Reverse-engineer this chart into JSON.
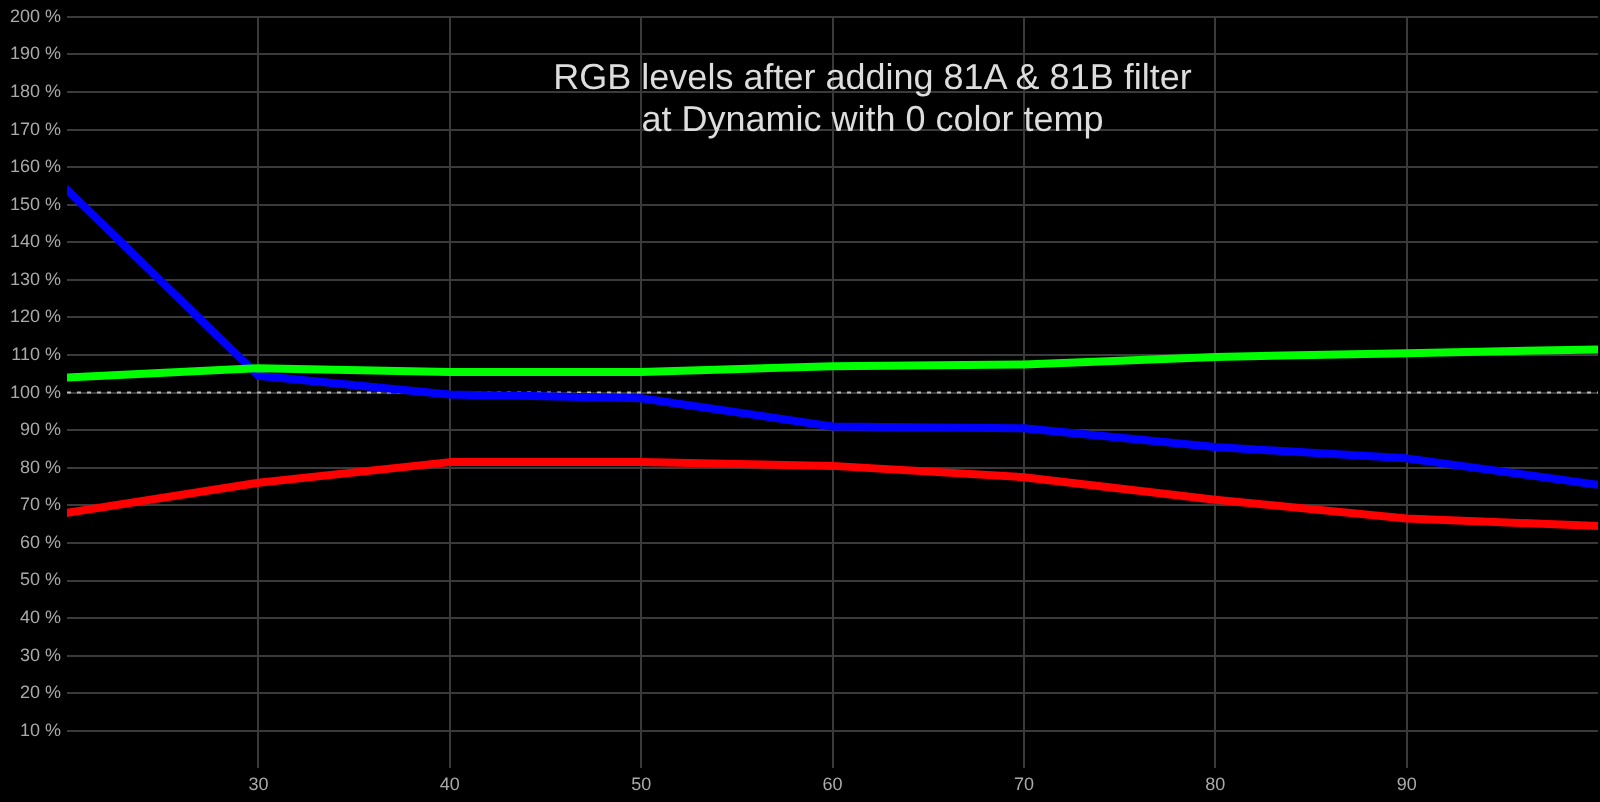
{
  "chart_data": {
    "type": "line",
    "title": "RGB levels after adding 81A & 81B filter",
    "subtitle": "at Dynamic with 0 color temp",
    "x": [
      20,
      30,
      40,
      50,
      60,
      70,
      80,
      90,
      100
    ],
    "series": [
      {
        "color": "#00ff00",
        "values": [
          104,
          106.5,
          105.5,
          105.5,
          107,
          107.5,
          109.5,
          110.5,
          111.5
        ]
      },
      {
        "color": "#0000ff",
        "values": [
          154,
          104.5,
          99.5,
          98.5,
          91,
          90.5,
          85.5,
          82.5,
          75.5
        ]
      },
      {
        "color": "#ff0000",
        "values": [
          68,
          76,
          81.5,
          81.5,
          80.5,
          77.5,
          71.5,
          66.5,
          64.5
        ]
      }
    ],
    "xlim": [
      20,
      100
    ],
    "xticks": [
      30,
      40,
      50,
      60,
      70,
      80,
      90
    ],
    "ylim": [
      0,
      200
    ],
    "yticks": [
      {
        "value": 10,
        "label": "10 %"
      },
      {
        "value": 20,
        "label": "20 %"
      },
      {
        "value": 30,
        "label": "30 %"
      },
      {
        "value": 40,
        "label": "40 %"
      },
      {
        "value": 50,
        "label": "50 %"
      },
      {
        "value": 60,
        "label": "60 %"
      },
      {
        "value": 70,
        "label": "70 %"
      },
      {
        "value": 80,
        "label": "80 %"
      },
      {
        "value": 90,
        "label": "90 %"
      },
      {
        "value": 100,
        "label": "100 %"
      },
      {
        "value": 110,
        "label": "110 %"
      },
      {
        "value": 120,
        "label": "120 %"
      },
      {
        "value": 130,
        "label": "130 %"
      },
      {
        "value": 140,
        "label": "140 %"
      },
      {
        "value": 150,
        "label": "150 %"
      },
      {
        "value": 160,
        "label": "160 %"
      },
      {
        "value": 170,
        "label": "170 %"
      },
      {
        "value": 180,
        "label": "180 %"
      },
      {
        "value": 190,
        "label": "190 %"
      },
      {
        "value": 200,
        "label": "200 %"
      }
    ],
    "ref_lines": [
      {
        "axis": "y",
        "value": 100,
        "color": "#bbbbbb",
        "line_style": "dotted"
      }
    ],
    "grid": true,
    "marker": "none",
    "line_style": "solid"
  }
}
